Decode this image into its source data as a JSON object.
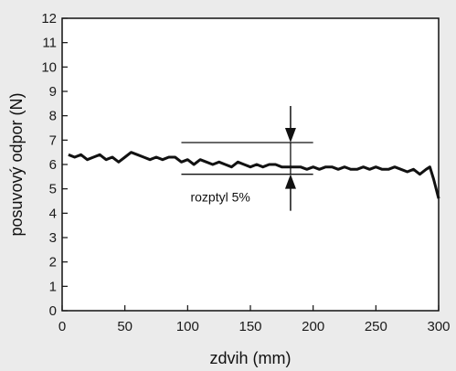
{
  "chart_data": {
    "type": "line",
    "title": "",
    "xlabel": "zdvih (mm)",
    "ylabel": "posuvový odpor (N)",
    "xlim": [
      0,
      300
    ],
    "ylim": [
      0,
      12
    ],
    "xticks": [
      0,
      50,
      100,
      150,
      200,
      250,
      300
    ],
    "yticks": [
      0,
      1,
      2,
      3,
      4,
      5,
      6,
      7,
      8,
      9,
      10,
      11,
      12
    ],
    "grid": false,
    "series": [
      {
        "x": [
          5,
          10,
          15,
          20,
          25,
          30,
          35,
          40,
          45,
          50,
          55,
          60,
          65,
          70,
          75,
          80,
          85,
          90,
          95,
          100,
          105,
          110,
          115,
          120,
          125,
          130,
          135,
          140,
          145,
          150,
          155,
          160,
          165,
          170,
          175,
          180,
          185,
          190,
          195,
          200,
          205,
          210,
          215,
          220,
          225,
          230,
          235,
          240,
          245,
          250,
          255,
          260,
          265,
          270,
          275,
          280,
          285,
          290,
          293,
          296,
          298,
          300
        ],
        "y": [
          6.4,
          6.3,
          6.4,
          6.2,
          6.3,
          6.4,
          6.2,
          6.3,
          6.1,
          6.3,
          6.5,
          6.4,
          6.3,
          6.2,
          6.3,
          6.2,
          6.3,
          6.3,
          6.1,
          6.2,
          6.0,
          6.2,
          6.1,
          6.0,
          6.1,
          6.0,
          5.9,
          6.1,
          6.0,
          5.9,
          6.0,
          5.9,
          6.0,
          6.0,
          5.9,
          5.9,
          5.9,
          5.9,
          5.8,
          5.9,
          5.8,
          5.9,
          5.9,
          5.8,
          5.9,
          5.8,
          5.8,
          5.9,
          5.8,
          5.9,
          5.8,
          5.8,
          5.9,
          5.8,
          5.7,
          5.8,
          5.6,
          5.8,
          5.9,
          5.4,
          5.0,
          4.6
        ]
      }
    ],
    "annotation": {
      "text": "rozptyl 5%",
      "x_start": 95,
      "x_end": 200,
      "x_arrow": 182,
      "y_upper": 6.9,
      "y_lower": 5.6
    }
  }
}
